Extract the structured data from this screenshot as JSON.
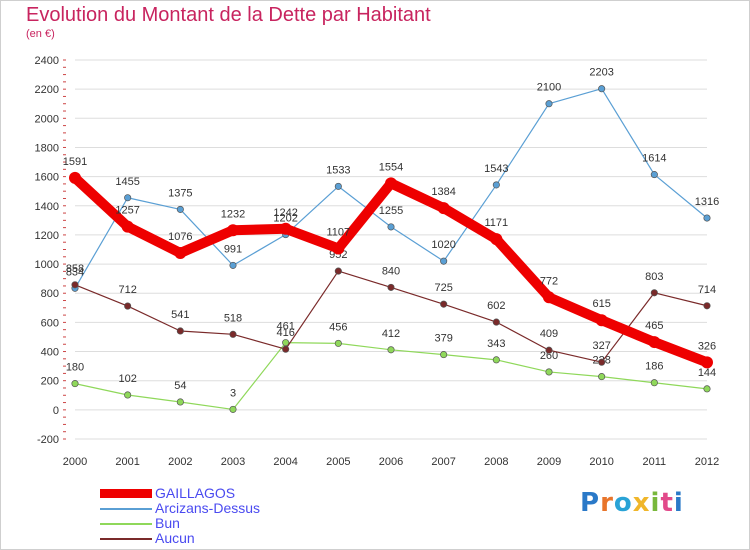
{
  "title": "Evolution du Montant de la Dette par Habitant",
  "subtitle": "(en €)",
  "logo_text": "Proxiti",
  "colors": {
    "title": "#c8245f",
    "axis": "#333333",
    "grid": "#dddddd",
    "legend_text": "#4a4af0"
  },
  "chart_data": {
    "type": "line",
    "x": [
      "2000",
      "2001",
      "2002",
      "2003",
      "2004",
      "2005",
      "2006",
      "2007",
      "2008",
      "2009",
      "2010",
      "2011",
      "2012"
    ],
    "ylim": [
      -200,
      2400
    ],
    "yticks": [
      -200,
      0,
      200,
      400,
      600,
      800,
      1000,
      1200,
      1400,
      1600,
      1800,
      2000,
      2200,
      2400
    ],
    "grid": true,
    "legend_position": "bottom-left",
    "series": [
      {
        "name": "Arcizans-Dessus",
        "color": "#5a9fd4",
        "values": [
          834,
          1455,
          1375,
          991,
          1202,
          1533,
          1255,
          1020,
          1543,
          2100,
          2203,
          1614,
          1316
        ],
        "labels": [
          "834",
          "1455",
          "1375",
          "991",
          "1202",
          "1533",
          "1255",
          "1020",
          "1543",
          "2100",
          "2203",
          "1614",
          "1316"
        ]
      },
      {
        "name": "Bun",
        "color": "#8fd85a",
        "values": [
          180,
          102,
          54,
          3,
          461,
          456,
          412,
          379,
          343,
          260,
          228,
          186,
          144
        ],
        "labels": [
          "180",
          "102",
          "54",
          "3",
          "461",
          "456",
          "412",
          "379",
          "343",
          "260",
          "228",
          "186",
          "144"
        ]
      },
      {
        "name": "Aucun",
        "color": "#7a2a2a",
        "values": [
          858,
          712,
          541,
          518,
          416,
          952,
          840,
          725,
          602,
          409,
          327,
          803,
          714
        ],
        "labels": [
          "858",
          "712",
          "541",
          "518",
          "416",
          "952",
          "840",
          "725",
          "602",
          "409",
          "327",
          "803",
          "714"
        ]
      },
      {
        "name": "GAILLAGOS",
        "color": "#ee0000",
        "values": [
          1591,
          1257,
          1076,
          1232,
          1242,
          1107,
          1554,
          1384,
          1171,
          772,
          615,
          465,
          326
        ],
        "labels": [
          "1591",
          "1257",
          "1076",
          "1232",
          "1242",
          "1107",
          "1554",
          "1384",
          "1171",
          "772",
          "615",
          "465",
          "326"
        ]
      }
    ],
    "legend_order": [
      "GAILLAGOS",
      "Arcizans-Dessus",
      "Bun",
      "Aucun"
    ]
  }
}
